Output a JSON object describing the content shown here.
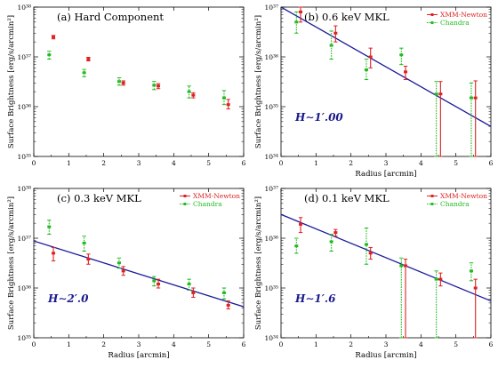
{
  "chart_data": [
    {
      "type": "scatter",
      "title": "(a) Hard Component",
      "xlabel": "",
      "ylabel": "Surface Brightness [erg/s/arcmin²]",
      "xlim": [
        0,
        6
      ],
      "ylim_log10": [
        35,
        38
      ],
      "x_ticks": [
        "0",
        "1",
        "2",
        "3",
        "4",
        "5",
        "6"
      ],
      "y_ticks": [
        "10³⁵",
        "10³⁶",
        "10³⁷",
        "10³⁸"
      ],
      "grid": false,
      "legend": [],
      "fit_label": "",
      "series": [
        {
          "color": "#dd2222",
          "x": [
            0.5,
            1.5,
            2.5,
            3.5,
            4.5,
            5.5
          ],
          "y": [
            2.5e+37,
            9e+36,
            3e+36,
            2.6e+36,
            1.7e+36,
            1.1e+36
          ],
          "err_lo": [
            2.3e+37,
            8.3e+36,
            2.7e+36,
            2.3e+36,
            1.5e+36,
            9e+35
          ],
          "err_hi": [
            2.7e+37,
            9.8e+36,
            3.3e+36,
            2.9e+36,
            1.9e+36,
            1.4e+36
          ]
        },
        {
          "color": "#22bb22",
          "x": [
            0.5,
            1.5,
            2.5,
            3.5,
            4.5,
            5.5
          ],
          "y": [
            1.1e+37,
            4.8e+36,
            3.2e+36,
            2.7e+36,
            2e+36,
            1.5e+36
          ],
          "err_lo": [
            9e+36,
            4e+36,
            2.7e+36,
            2.2e+36,
            1.5e+36,
            1.1e+36
          ],
          "err_hi": [
            1.3e+37,
            5.6e+36,
            3.8e+36,
            3.2e+36,
            2.6e+36,
            2.1e+36
          ]
        }
      ]
    },
    {
      "type": "scatter",
      "title": "(b) 0.6 keV MKL",
      "xlabel": "Radius [arcmin]",
      "ylabel": "Surface Brightness [erg/s/arcmin²]",
      "xlim": [
        0,
        6
      ],
      "ylim_log10": [
        34,
        37
      ],
      "x_ticks": [
        "0",
        "1",
        "2",
        "3",
        "4",
        "5",
        "6"
      ],
      "y_ticks": [
        "10³⁴",
        "10³⁵",
        "10³⁶",
        "10³⁷"
      ],
      "grid": false,
      "legend": [
        "XMM-Newton",
        "Chandra"
      ],
      "fit_label": "H∼1′.00",
      "fit": {
        "x": [
          0,
          6
        ],
        "y": [
          2e+37,
          4e+34
        ]
      },
      "series": [
        {
          "name": "XMM-Newton",
          "color": "#dd2222",
          "x": [
            0.5,
            1.5,
            2.5,
            3.5,
            4.5,
            5.5
          ],
          "y": [
            8e+36,
            3e+36,
            1e+36,
            5e+35,
            1.8e+35,
            1.5e+35
          ],
          "err_lo": [
            5e+36,
            2e+36,
            6e+35,
            3.5e+35,
            1e+34,
            1e+34
          ],
          "err_hi": [
            1.2e+37,
            4.2e+36,
            1.5e+36,
            6.5e+35,
            3.2e+35,
            3.3e+35
          ]
        },
        {
          "name": "Chandra",
          "color": "#22bb22",
          "x": [
            0.5,
            1.5,
            2.5,
            3.5,
            4.5,
            5.5
          ],
          "y": [
            5e+36,
            1.7e+36,
            5.5e+35,
            1.1e+36,
            1.8e+35,
            1.5e+35
          ],
          "err_lo": [
            3e+36,
            9e+35,
            3.5e+35,
            7e+35,
            1e+34,
            1e+34
          ],
          "err_hi": [
            8e+36,
            3.3e+36,
            9e+35,
            1.5e+36,
            3.2e+35,
            3e+35
          ]
        }
      ]
    },
    {
      "type": "scatter",
      "title": "(c) 0.3 keV MKL",
      "xlabel": "Radius [arcmin]",
      "ylabel": "Surface Brightness [erg/s/arcmin²]",
      "xlim": [
        0,
        6
      ],
      "ylim_log10": [
        35,
        38
      ],
      "x_ticks": [
        "0",
        "1",
        "2",
        "3",
        "4",
        "5",
        "6"
      ],
      "y_ticks": [
        "10³⁵",
        "10³⁶",
        "10³⁷",
        "10³⁸"
      ],
      "grid": false,
      "legend": [
        "XMM-Newton",
        "Chandra"
      ],
      "fit_label": "H∼2′.0",
      "fit": {
        "x": [
          0,
          6
        ],
        "y": [
          8.8e+36,
          4.2e+35
        ]
      },
      "series": [
        {
          "name": "XMM-Newton",
          "color": "#dd2222",
          "x": [
            0.5,
            1.5,
            2.5,
            3.5,
            4.5,
            5.5
          ],
          "y": [
            5e+36,
            3.8e+36,
            2.2e+36,
            1.2e+36,
            8e+35,
            4.5e+35
          ],
          "err_lo": [
            3.5e+36,
            3e+36,
            1.8e+36,
            1e+36,
            6.5e+35,
            3.8e+35
          ],
          "err_hi": [
            6.5e+36,
            4.8e+36,
            2.7e+36,
            1.5e+36,
            1e+36,
            5.5e+35
          ]
        },
        {
          "name": "Chandra",
          "color": "#22bb22",
          "x": [
            0.5,
            1.5,
            2.5,
            3.5,
            4.5,
            5.5
          ],
          "y": [
            1.7e+37,
            8e+36,
            3.2e+36,
            1.4e+36,
            1.2e+36,
            8e+35
          ],
          "err_lo": [
            1.2e+37,
            5.5e+36,
            2.5e+36,
            1.1e+36,
            9e+35,
            6e+35
          ],
          "err_hi": [
            2.3e+37,
            1.1e+37,
            4e+36,
            1.7e+36,
            1.5e+36,
            1e+36
          ]
        }
      ]
    },
    {
      "type": "scatter",
      "title": "(d) 0.1 keV MKL",
      "xlabel": "Radius [arcmin]",
      "ylabel": "Surface Brightness [erg/s/arcmin²]",
      "xlim": [
        0,
        6
      ],
      "ylim_log10": [
        34,
        37
      ],
      "x_ticks": [
        "0",
        "1",
        "2",
        "3",
        "4",
        "5",
        "6"
      ],
      "y_ticks": [
        "10³⁴",
        "10³⁵",
        "10³⁶",
        "10³⁷"
      ],
      "grid": false,
      "legend": [
        "XMM-Newton",
        "Chandra"
      ],
      "fit_label": "H∼1′.6",
      "fit": {
        "x": [
          0,
          6
        ],
        "y": [
          3e+36,
          5.5e+34
        ]
      },
      "series": [
        {
          "name": "XMM-Newton",
          "color": "#dd2222",
          "x": [
            0.5,
            1.5,
            2.5,
            3.5,
            4.5,
            5.5
          ],
          "y": [
            1.9e+36,
            1.3e+36,
            5e+35,
            2.8e+35,
            1.5e+35,
            1e+35
          ],
          "err_lo": [
            1.3e+36,
            1.1e+36,
            3.8e+35,
            1e+34,
            1.1e+35,
            1e+34
          ],
          "err_hi": [
            2.6e+36,
            1.5e+36,
            6.5e+35,
            3.8e+35,
            2e+35,
            1.5e+35
          ]
        },
        {
          "name": "Chandra",
          "color": "#22bb22",
          "x": [
            0.5,
            1.5,
            2.5,
            3.5,
            4.5,
            5.5
          ],
          "y": [
            7e+35,
            8.5e+35,
            7.5e+35,
            2.8e+35,
            1.5e+35,
            2.2e+35
          ],
          "err_lo": [
            5e+35,
            5.5e+35,
            3e+35,
            1e+34,
            1e+34,
            1.4e+35
          ],
          "err_hi": [
            1e+36,
            1.2e+36,
            1.6e+36,
            4e+35,
            2.2e+35,
            3.2e+35
          ]
        }
      ]
    }
  ]
}
